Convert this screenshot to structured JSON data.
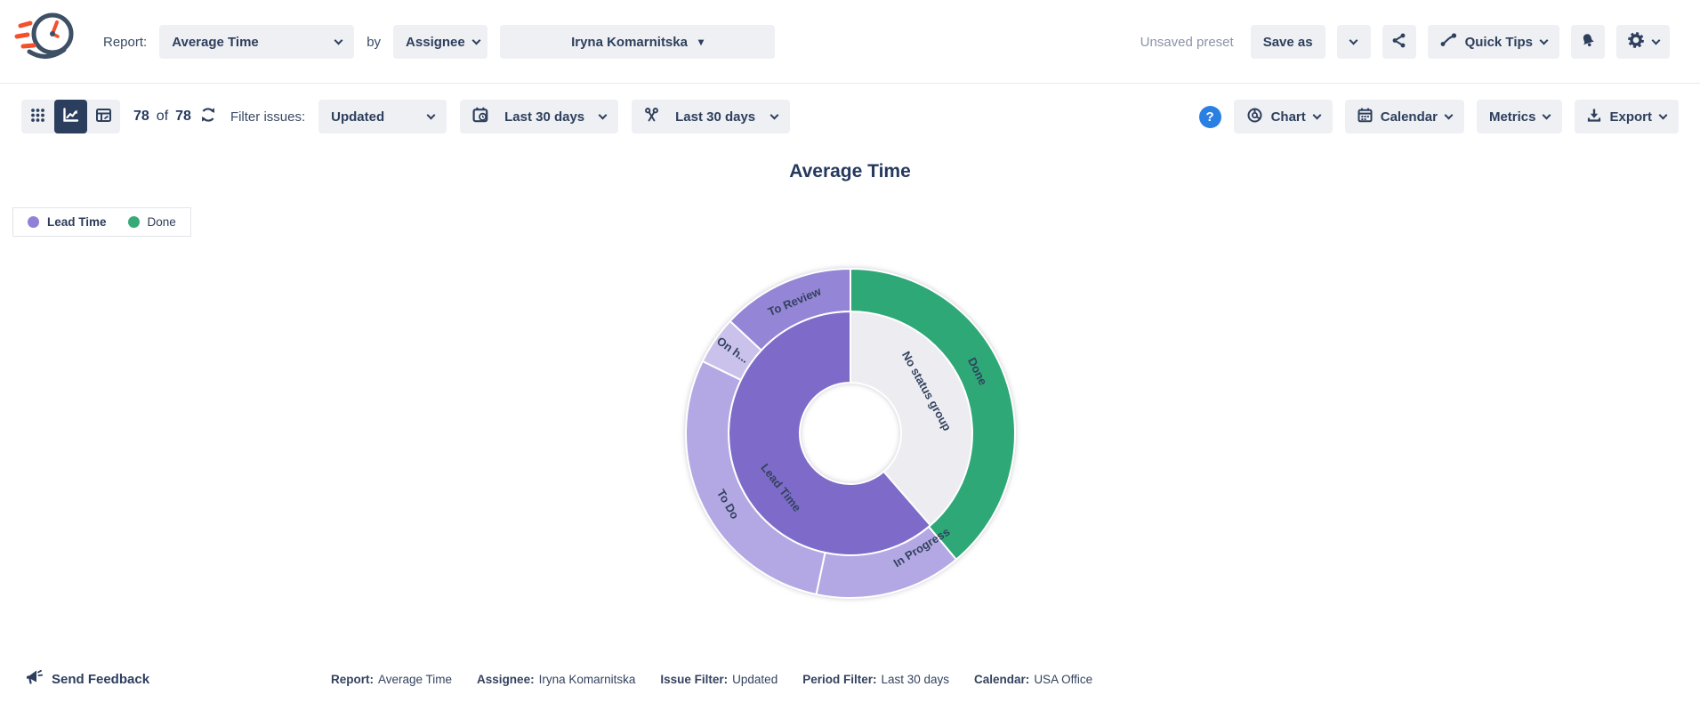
{
  "header": {
    "report_label": "Report:",
    "report_value": "Average Time",
    "by_label": "by",
    "group_value": "Assignee",
    "assignee_value": "Iryna Komarnitska",
    "unsaved_label": "Unsaved preset",
    "save_as_label": "Save as",
    "quick_tips_label": "Quick Tips"
  },
  "toolbar": {
    "count_current": "78",
    "count_of": "of",
    "count_total": "78",
    "filter_label": "Filter issues:",
    "issue_filter_value": "Updated",
    "date_range_value": "Last 30 days",
    "period_filter_value": "Last 30 days",
    "chart_label": "Chart",
    "calendar_label": "Calendar",
    "metrics_label": "Metrics",
    "export_label": "Export"
  },
  "icons": {
    "help_glyph": "?",
    "dropdown_triangle": "▾",
    "logo": "speeding-clock",
    "share": "share-nodes",
    "quick_tips": "trend-route",
    "notifications": "bell",
    "settings": "gear",
    "view_grid": "grid-dots",
    "view_chart": "chart-line",
    "view_table": "pivot-table",
    "refresh": "refresh-arrows",
    "date_range": "calendar-clock",
    "period_filter": "scissors",
    "chart_menu": "donut-chart",
    "calendar_menu": "calendar",
    "export": "download-arrow",
    "feedback": "megaphone"
  },
  "chart_data": {
    "type": "sunburst",
    "title": "Average Time",
    "legend": [
      {
        "label": "Lead Time",
        "color": "#9181d6",
        "emphasis": true
      },
      {
        "label": "Done",
        "color": "#36ab78",
        "emphasis": false
      }
    ],
    "label_color": "#32425e",
    "rings": {
      "inner": [
        {
          "label": "No status group",
          "color": "#ececf1",
          "start_deg": 0,
          "end_deg": 139,
          "label_deg": 61,
          "label_r": 97,
          "orient": "tangential"
        },
        {
          "label": "Lead Time",
          "color": "#7e6bc9",
          "start_deg": 139,
          "end_deg": 360,
          "label_deg": 232,
          "label_r": 100,
          "orient": "tangential"
        }
      ],
      "outer": [
        {
          "label": "Done",
          "color": "#2ea876",
          "start_deg": 0,
          "end_deg": 140,
          "label_deg": 64,
          "label_r": 158,
          "orient": "tangential"
        },
        {
          "label": "In Progress",
          "color": "#b3a8e3",
          "start_deg": 140,
          "end_deg": 192,
          "label_deg": 148,
          "label_r": 152,
          "orient": "tangential"
        },
        {
          "label": "To Do",
          "color": "#b3a8e3",
          "start_deg": 192,
          "end_deg": 296,
          "label_deg": 240,
          "label_r": 160,
          "orient": "tangential"
        },
        {
          "label": "On h...",
          "color": "#cbc2ec",
          "start_deg": 296,
          "end_deg": 313,
          "label_deg": 305,
          "label_r": 162,
          "orient": "radial"
        },
        {
          "label": "To Review",
          "color": "#9585d6",
          "start_deg": 313,
          "end_deg": 360,
          "label_deg": 337,
          "label_r": 160,
          "orient": "tangential"
        }
      ]
    },
    "radii": {
      "hole": 57,
      "ring_boundary": 137,
      "outer": 185
    }
  },
  "footer": {
    "send_feedback": "Send Feedback",
    "summary": [
      {
        "label": "Report:",
        "value": "Average Time"
      },
      {
        "label": "Assignee:",
        "value": "Iryna Komarnitska"
      },
      {
        "label": "Issue Filter:",
        "value": "Updated"
      },
      {
        "label": "Period Filter:",
        "value": "Last 30 days"
      },
      {
        "label": "Calendar:",
        "value": "USA Office"
      }
    ]
  }
}
